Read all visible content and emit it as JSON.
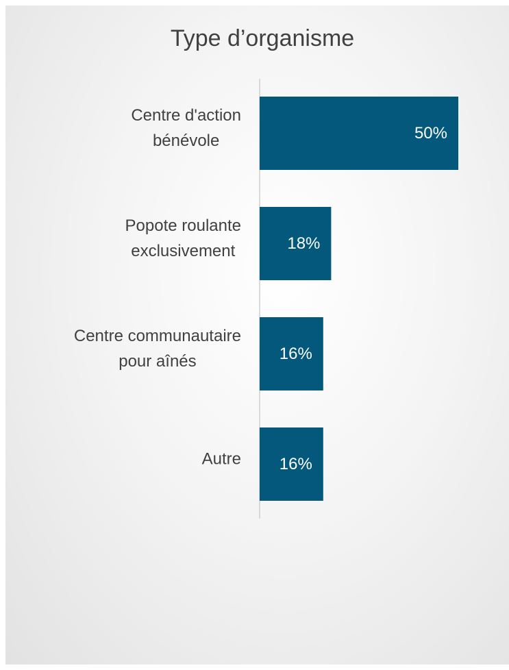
{
  "chart_data": {
    "type": "bar",
    "orientation": "horizontal",
    "title": "Type d’organisme",
    "categories": [
      "Centre d'action\nbénévole",
      "Popote roulante\nexclusivement",
      "Centre communautaire\npour aînés",
      "Autre"
    ],
    "values": [
      50,
      18,
      16,
      16
    ],
    "value_labels": [
      "50%",
      "18%",
      "16%",
      "16%"
    ],
    "color": "#03587c",
    "xlim": [
      0,
      50
    ]
  }
}
